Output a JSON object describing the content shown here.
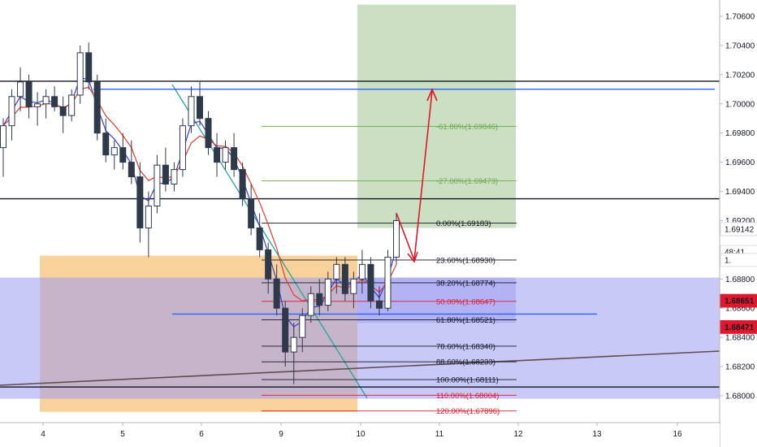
{
  "chart_data": {
    "type": "candlestick",
    "title": "",
    "xlabel": "",
    "ylabel": "",
    "ylim": [
      1.6786,
      1.7068
    ],
    "grid": false,
    "x_ticks": [
      "4",
      "5",
      "6",
      "9",
      "10",
      "11",
      "12",
      "13",
      "16"
    ],
    "y_ticks": [
      "1.70600",
      "1.70400",
      "1.70200",
      "1.70000",
      "1.69800",
      "1.69600",
      "1.69400",
      "1.69200",
      "1.68800",
      "1.68600",
      "1.68400",
      "1.68200",
      "1.68000"
    ],
    "price_tags": [
      {
        "label": "1.69142",
        "value": 1.69142,
        "color": "#ffffff",
        "text_color": "#131722"
      },
      {
        "label": "48:41",
        "value": 1.68985,
        "color": "#ffffff",
        "text_color": "#131722"
      },
      {
        "label": "1.",
        "value": 1.6893,
        "color": "#ffffff",
        "text_color": "#131722"
      },
      {
        "label": "1.68651",
        "value": 1.68651,
        "color": "#e0182d",
        "text_color": "#ffffff"
      },
      {
        "label": "1.68471",
        "value": 1.68471,
        "color": "#e0182d",
        "text_color": "#ffffff"
      }
    ],
    "fib_levels": [
      {
        "label": "-61.80%(1.69846)",
        "value": 1.69846,
        "color": "#6aa84f"
      },
      {
        "label": "-27.00%(1.69473)",
        "value": 1.69473,
        "color": "#6aa84f"
      },
      {
        "label": "0.00%(1.69183)",
        "value": 1.69183,
        "color": "#131722"
      },
      {
        "label": "23.60%(1.68930)",
        "value": 1.6893,
        "color": "#131722"
      },
      {
        "label": "38.20%(1.68774)",
        "value": 1.68774,
        "color": "#131722"
      },
      {
        "label": "50.00%(1.68647)",
        "value": 1.68647,
        "color": "#e0182d"
      },
      {
        "label": "61.80%(1.68521)",
        "value": 1.68521,
        "color": "#131722"
      },
      {
        "label": "78.60%(1.68340)",
        "value": 1.6834,
        "color": "#131722"
      },
      {
        "label": "88.60%(1.68233)",
        "value": 1.68233,
        "color": "#131722"
      },
      {
        "label": "100.00%(1.68111)",
        "value": 1.68111,
        "color": "#131722"
      },
      {
        "label": "110.00%(1.68004)",
        "value": 1.68004,
        "color": "#e0182d"
      },
      {
        "label": "120.00%(1.67896)",
        "value": 1.67896,
        "color": "#e0182d"
      }
    ],
    "horizontal_levels": [
      {
        "value": 1.70155,
        "color": "#131722"
      },
      {
        "value": 1.701,
        "color": "#2962ff"
      },
      {
        "value": 1.6935,
        "color": "#131722"
      },
      {
        "value": 1.6856,
        "color": "#2962ff"
      },
      {
        "value": 1.6806,
        "color": "#131722"
      }
    ],
    "zones": [
      {
        "name": "demand",
        "color": "#f5c27a",
        "top": 1.6896,
        "bottom": 1.6789
      },
      {
        "name": "blue-range",
        "color": "#9c9cf2",
        "top": 1.6881,
        "bottom": 1.6798
      },
      {
        "name": "take-profit",
        "color": "#a8c99a",
        "top": 1.7068,
        "bottom": 1.6915
      },
      {
        "name": "stop",
        "color": "#9c9cf2",
        "top": 1.6881,
        "bottom": 1.685
      }
    ],
    "candles": [
      [
        1.697,
        1.699,
        1.695,
        1.6985
      ],
      [
        1.6985,
        1.701,
        1.6975,
        1.7005
      ],
      [
        1.7005,
        1.7025,
        1.6995,
        1.7015
      ],
      [
        1.7015,
        1.702,
        1.699,
        1.6998
      ],
      [
        1.6998,
        1.7008,
        1.6985,
        1.7
      ],
      [
        1.7,
        1.701,
        1.699,
        1.7005
      ],
      [
        1.7005,
        1.7012,
        1.6995,
        1.6998
      ],
      [
        1.6998,
        1.7005,
        1.698,
        1.6992
      ],
      [
        1.6992,
        1.701,
        1.6988,
        1.7006
      ],
      [
        1.7006,
        1.704,
        1.7,
        1.7035
      ],
      [
        1.7035,
        1.7042,
        1.701,
        1.7015
      ],
      [
        1.7015,
        1.702,
        1.6975,
        1.698
      ],
      [
        1.698,
        1.699,
        1.696,
        1.6965
      ],
      [
        1.6965,
        1.6975,
        1.6955,
        1.697
      ],
      [
        1.697,
        1.698,
        1.6955,
        1.696
      ],
      [
        1.696,
        1.6975,
        1.6945,
        1.695
      ],
      [
        1.695,
        1.696,
        1.6905,
        1.6915
      ],
      [
        1.6915,
        1.694,
        1.6895,
        1.693
      ],
      [
        1.693,
        1.6965,
        1.6925,
        1.6958
      ],
      [
        1.6958,
        1.697,
        1.694,
        1.6945
      ],
      [
        1.6945,
        1.696,
        1.694,
        1.6955
      ],
      [
        1.6955,
        1.699,
        1.695,
        1.6985
      ],
      [
        1.6985,
        1.7012,
        1.698,
        1.7005
      ],
      [
        1.7005,
        1.7015,
        1.6985,
        1.699
      ],
      [
        1.699,
        1.6995,
        1.6965,
        1.697
      ],
      [
        1.697,
        1.698,
        1.695,
        1.696
      ],
      [
        1.696,
        1.6975,
        1.6955,
        1.697
      ],
      [
        1.697,
        1.698,
        1.695,
        1.6955
      ],
      [
        1.6955,
        1.696,
        1.693,
        1.6935
      ],
      [
        1.6935,
        1.6945,
        1.691,
        1.6915
      ],
      [
        1.6915,
        1.6925,
        1.6895,
        1.69
      ],
      [
        1.69,
        1.6905,
        1.687,
        1.688
      ],
      [
        1.688,
        1.689,
        1.6855,
        1.686
      ],
      [
        1.686,
        1.6865,
        1.682,
        1.683
      ],
      [
        1.683,
        1.685,
        1.6808,
        1.684
      ],
      [
        1.684,
        1.686,
        1.683,
        1.6855
      ],
      [
        1.6855,
        1.6875,
        1.685,
        1.687
      ],
      [
        1.687,
        1.688,
        1.6855,
        1.6862
      ],
      [
        1.6862,
        1.6885,
        1.6858,
        1.688
      ],
      [
        1.688,
        1.6895,
        1.687,
        1.689
      ],
      [
        1.689,
        1.6895,
        1.6865,
        1.687
      ],
      [
        1.687,
        1.6885,
        1.686,
        1.688
      ],
      [
        1.688,
        1.69,
        1.687,
        1.689
      ],
      [
        1.689,
        1.6895,
        1.686,
        1.6865
      ],
      [
        1.6865,
        1.6875,
        1.6855,
        1.686
      ],
      [
        1.686,
        1.69,
        1.6858,
        1.6895
      ],
      [
        1.6895,
        1.6925,
        1.689,
        1.692
      ]
    ]
  },
  "icons": {
    "target_arrow": "red-up-arrow",
    "retrace_arrow": "red-down-arrow"
  }
}
